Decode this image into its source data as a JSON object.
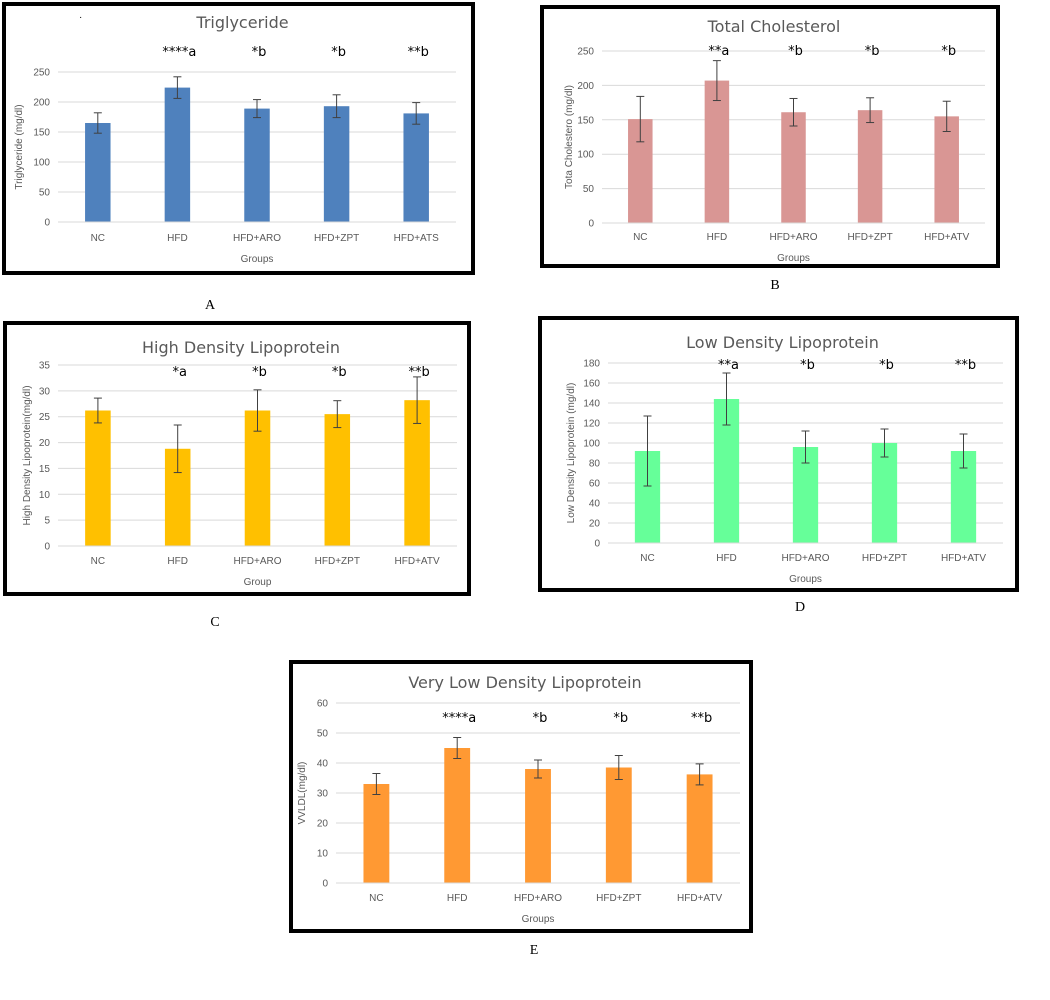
{
  "panel_labels": [
    "A",
    "B",
    "C",
    "D",
    "E"
  ],
  "stray_mark": "·",
  "chart_data": [
    {
      "id": "A",
      "type": "bar",
      "title": "Triglyceride",
      "xlabel": "Groups",
      "ylabel": "Triglyceride (mg/dl)",
      "categories": [
        "NC",
        "HFD",
        "HFD+ARO",
        "HFD+ZPT",
        "HFD+ATS"
      ],
      "values": [
        165,
        224,
        189,
        193,
        181
      ],
      "errors": [
        17,
        18,
        15,
        19,
        18
      ],
      "annotations": [
        "",
        "****a",
        "*b",
        "*b",
        "**b"
      ],
      "ylim": [
        0,
        250
      ],
      "yticks": [
        0,
        50,
        100,
        150,
        200,
        250
      ],
      "bar_color": "#4f81bd",
      "grid": true
    },
    {
      "id": "B",
      "type": "bar",
      "title": "Total Cholesterol",
      "xlabel": "Groups",
      "ylabel": "Tota Cholestero (mg/dl)",
      "categories": [
        "NC",
        "HFD",
        "HFD+ARO",
        "HFD+ZPT",
        "HFD+ATV"
      ],
      "values": [
        151,
        207,
        161,
        164,
        155
      ],
      "errors": [
        33,
        29,
        20,
        18,
        22
      ],
      "annotations": [
        "",
        "**a",
        "*b",
        "*b",
        "*b"
      ],
      "ylim": [
        0,
        250
      ],
      "yticks": [
        0,
        50,
        100,
        150,
        200,
        250
      ],
      "bar_color": "#d99694",
      "grid": true
    },
    {
      "id": "C",
      "type": "bar",
      "title": "High Density Lipoprotein",
      "xlabel": "Group",
      "ylabel": "High Density Lipoprotein(mg/dl)",
      "categories": [
        "NC",
        "HFD",
        "HFD+ARO",
        "HFD+ZPT",
        "HFD+ATV"
      ],
      "values": [
        26.2,
        18.8,
        26.2,
        25.5,
        28.2
      ],
      "errors": [
        2.4,
        4.6,
        4.0,
        2.6,
        4.5
      ],
      "annotations": [
        "",
        "*a",
        "*b",
        "*b",
        "**b"
      ],
      "ylim": [
        0,
        35
      ],
      "yticks": [
        0,
        5,
        10,
        15,
        20,
        25,
        30,
        35
      ],
      "bar_color": "#ffc000",
      "grid": true
    },
    {
      "id": "D",
      "type": "bar",
      "title": "Low Density Lipoprotein",
      "xlabel": "Groups",
      "ylabel": "Low Density Lipoprotein (mg/dl)",
      "categories": [
        "NC",
        "HFD",
        "HFD+ARO",
        "HFD+ZPT",
        "HFD+ATV"
      ],
      "values": [
        92,
        144,
        96,
        100,
        92
      ],
      "errors": [
        35,
        26,
        16,
        14,
        17
      ],
      "annotations": [
        "",
        "**a",
        "*b",
        "*b",
        "**b"
      ],
      "ylim": [
        0,
        180
      ],
      "yticks": [
        0,
        20,
        40,
        60,
        80,
        100,
        120,
        140,
        160,
        180
      ],
      "bar_color": "#66ff99",
      "grid": true
    },
    {
      "id": "E",
      "type": "bar",
      "title": "Very Low Density Lipoprotein",
      "xlabel": "Groups",
      "ylabel": "VVLDL(mg/dl)",
      "categories": [
        "NC",
        "HFD",
        "HFD+ARO",
        "HFD+ZPT",
        "HFD+ATV"
      ],
      "values": [
        33,
        45,
        38,
        38.5,
        36.2
      ],
      "errors": [
        3.5,
        3.5,
        3,
        4,
        3.5
      ],
      "annotations": [
        "",
        "****a",
        "*b",
        "*b",
        "**b"
      ],
      "ylim": [
        0,
        60
      ],
      "yticks": [
        0,
        10,
        20,
        30,
        40,
        50,
        60
      ],
      "bar_color": "#ff9933",
      "grid": true
    }
  ]
}
